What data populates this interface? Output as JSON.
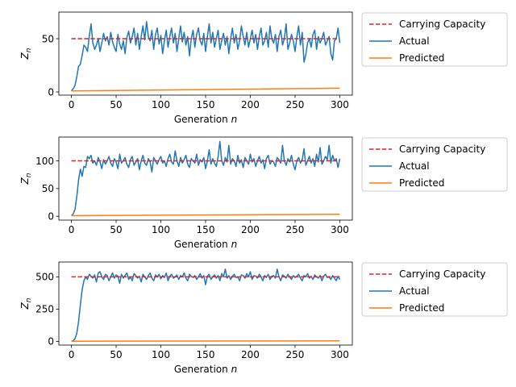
{
  "figure_colors": {
    "capacity": "#d62728",
    "actual": "#1f77b4",
    "predicted": "#ff7f0e"
  },
  "chart_data": [
    {
      "type": "line",
      "xlabel": "Generation n",
      "ylabel": "Z_n",
      "xlim": [
        -14,
        314
      ],
      "ylim": [
        -3,
        75
      ],
      "xticks": [
        0,
        50,
        100,
        150,
        200,
        250,
        300
      ],
      "yticks": [
        0,
        50
      ],
      "legend_position": "outside-right-top",
      "legend": [
        "Carrying Capacity",
        "Actual",
        "Predicted"
      ],
      "series": [
        {
          "name": "Carrying Capacity",
          "style": "dashed",
          "x": [
            0,
            300
          ],
          "values": [
            50,
            50
          ]
        },
        {
          "name": "Actual",
          "x": [
            0,
            2,
            4,
            6,
            8,
            10,
            12,
            14,
            16,
            18,
            20,
            22,
            24,
            26,
            28,
            30,
            32,
            34,
            36,
            38,
            40,
            42,
            44,
            46,
            48,
            50,
            52,
            54,
            56,
            58,
            60,
            62,
            64,
            66,
            68,
            70,
            72,
            74,
            76,
            78,
            80,
            82,
            84,
            86,
            88,
            90,
            92,
            94,
            96,
            98,
            100,
            102,
            104,
            106,
            108,
            110,
            112,
            114,
            116,
            118,
            120,
            122,
            124,
            126,
            128,
            130,
            132,
            134,
            136,
            138,
            140,
            142,
            144,
            146,
            148,
            150,
            152,
            154,
            156,
            158,
            160,
            162,
            164,
            166,
            168,
            170,
            172,
            174,
            176,
            178,
            180,
            182,
            184,
            186,
            188,
            190,
            192,
            194,
            196,
            198,
            200,
            202,
            204,
            206,
            208,
            210,
            212,
            214,
            216,
            218,
            220,
            222,
            224,
            226,
            228,
            230,
            232,
            234,
            236,
            238,
            240,
            242,
            244,
            246,
            248,
            250,
            252,
            254,
            256,
            258,
            260,
            262,
            264,
            266,
            268,
            270,
            272,
            274,
            276,
            278,
            280,
            282,
            284,
            286,
            288,
            290,
            292,
            294,
            296,
            298,
            300
          ],
          "values": [
            1,
            3,
            6,
            14,
            24,
            26,
            34,
            44,
            42,
            38,
            52,
            64,
            46,
            40,
            44,
            50,
            38,
            46,
            55,
            48,
            52,
            44,
            56,
            47,
            42,
            38,
            54,
            45,
            40,
            48,
            36,
            51,
            57,
            46,
            52,
            60,
            44,
            55,
            40,
            52,
            62,
            49,
            66,
            52,
            48,
            58,
            40,
            54,
            60,
            45,
            53,
            36,
            48,
            58,
            42,
            52,
            60,
            46,
            55,
            38,
            50,
            62,
            47,
            56,
            44,
            52,
            34,
            50,
            58,
            42,
            54,
            60,
            48,
            44,
            55,
            38,
            52,
            64,
            46,
            56,
            42,
            50,
            58,
            40,
            48,
            55,
            44,
            52,
            36,
            50,
            60,
            46,
            54,
            40,
            48,
            62,
            52,
            44,
            56,
            42,
            50,
            58,
            46,
            54,
            40,
            52,
            60,
            44,
            48,
            56,
            42,
            62,
            50,
            46,
            54,
            38,
            52,
            58,
            44,
            50,
            64,
            40,
            46,
            54,
            48,
            38,
            52,
            62,
            44,
            56,
            28,
            35,
            46,
            50,
            42,
            54,
            58,
            40,
            52,
            46,
            50,
            56,
            44,
            48,
            52,
            36,
            30,
            48,
            50,
            60,
            46
          ]
        },
        {
          "name": "Predicted",
          "x": [
            0,
            300
          ],
          "values": [
            1,
            3.5
          ]
        }
      ]
    },
    {
      "type": "line",
      "xlabel": "Generation n",
      "ylabel": "Z_n",
      "xlim": [
        -14,
        314
      ],
      "ylim": [
        -7,
        143
      ],
      "xticks": [
        0,
        50,
        100,
        150,
        200,
        250,
        300
      ],
      "yticks": [
        0,
        50,
        100
      ],
      "legend_position": "outside-right-top",
      "legend": [
        "Carrying Capacity",
        "Actual",
        "Predicted"
      ],
      "series": [
        {
          "name": "Carrying Capacity",
          "style": "dashed",
          "x": [
            0,
            300
          ],
          "values": [
            100,
            100
          ]
        },
        {
          "name": "Actual",
          "x": [
            0,
            2,
            4,
            6,
            8,
            10,
            12,
            14,
            16,
            18,
            20,
            22,
            24,
            26,
            28,
            30,
            32,
            34,
            36,
            38,
            40,
            42,
            44,
            46,
            48,
            50,
            52,
            54,
            56,
            58,
            60,
            62,
            64,
            66,
            68,
            70,
            72,
            74,
            76,
            78,
            80,
            82,
            84,
            86,
            88,
            90,
            92,
            94,
            96,
            98,
            100,
            102,
            104,
            106,
            108,
            110,
            112,
            114,
            116,
            118,
            120,
            122,
            124,
            126,
            128,
            130,
            132,
            134,
            136,
            138,
            140,
            142,
            144,
            146,
            148,
            150,
            152,
            154,
            156,
            158,
            160,
            162,
            164,
            166,
            168,
            170,
            172,
            174,
            176,
            178,
            180,
            182,
            184,
            186,
            188,
            190,
            192,
            194,
            196,
            198,
            200,
            202,
            204,
            206,
            208,
            210,
            212,
            214,
            216,
            218,
            220,
            222,
            224,
            226,
            228,
            230,
            232,
            234,
            236,
            238,
            240,
            242,
            244,
            246,
            248,
            250,
            252,
            254,
            256,
            258,
            260,
            262,
            264,
            266,
            268,
            270,
            272,
            274,
            276,
            278,
            280,
            282,
            284,
            286,
            288,
            290,
            292,
            294,
            296,
            298,
            300
          ],
          "values": [
            1,
            4,
            12,
            35,
            65,
            85,
            72,
            90,
            88,
            108,
            104,
            110,
            96,
            100,
            92,
            106,
            98,
            86,
            102,
            94,
            100,
            108,
            96,
            90,
            104,
            98,
            86,
            112,
            96,
            100,
            106,
            94,
            88,
            102,
            108,
            92,
            98,
            104,
            84,
            100,
            110,
            96,
            92,
            104,
            98,
            80,
            106,
            100,
            94,
            102,
            108,
            96,
            100,
            90,
            104,
            112,
            98,
            94,
            118,
            100,
            90,
            106,
            96,
            102,
            110,
            94,
            88,
            104,
            100,
            96,
            112,
            92,
            102,
            98,
            106,
            86,
            100,
            120,
            94,
            104,
            96,
            90,
            108,
            135,
            100,
            92,
            106,
            98,
            128,
            94,
            104,
            100,
            90,
            110,
            96,
            102,
            88,
            106,
            100,
            94,
            112,
            98,
            104,
            90,
            100,
            108,
            96,
            102,
            86,
            104,
            110,
            94,
            100,
            98,
            90,
            106,
            102,
            96,
            128,
            100,
            92,
            104,
            98,
            110,
            94,
            84,
            100,
            106,
            96,
            102,
            122,
            92,
            100,
            108,
            96,
            104,
            90,
            112,
            98,
            124,
            94,
            100,
            108,
            102,
            128,
            96,
            110,
            100,
            104,
            88,
            104
          ]
        },
        {
          "name": "Predicted",
          "x": [
            0,
            300
          ],
          "values": [
            1,
            3.5
          ]
        }
      ]
    },
    {
      "type": "line",
      "xlabel": "Generation n",
      "ylabel": "Z_n",
      "xlim": [
        -14,
        314
      ],
      "ylim": [
        -29,
        615
      ],
      "xticks": [
        0,
        50,
        100,
        150,
        200,
        250,
        300
      ],
      "yticks": [
        0,
        250,
        500
      ],
      "legend_position": "outside-right-top",
      "legend": [
        "Carrying Capacity",
        "Actual",
        "Predicted"
      ],
      "series": [
        {
          "name": "Carrying Capacity",
          "style": "dashed",
          "x": [
            0,
            300
          ],
          "values": [
            500,
            500
          ]
        },
        {
          "name": "Actual",
          "x": [
            0,
            2,
            4,
            6,
            8,
            10,
            12,
            14,
            16,
            18,
            20,
            22,
            24,
            26,
            28,
            30,
            32,
            34,
            36,
            38,
            40,
            42,
            44,
            46,
            48,
            50,
            52,
            54,
            56,
            58,
            60,
            62,
            64,
            66,
            68,
            70,
            72,
            74,
            76,
            78,
            80,
            82,
            84,
            86,
            88,
            90,
            92,
            94,
            96,
            98,
            100,
            102,
            104,
            106,
            108,
            110,
            112,
            114,
            116,
            118,
            120,
            122,
            124,
            126,
            128,
            130,
            132,
            134,
            136,
            138,
            140,
            142,
            144,
            146,
            148,
            150,
            152,
            154,
            156,
            158,
            160,
            162,
            164,
            166,
            168,
            170,
            172,
            174,
            176,
            178,
            180,
            182,
            184,
            186,
            188,
            190,
            192,
            194,
            196,
            198,
            200,
            202,
            204,
            206,
            208,
            210,
            212,
            214,
            216,
            218,
            220,
            222,
            224,
            226,
            228,
            230,
            232,
            234,
            236,
            238,
            240,
            242,
            244,
            246,
            248,
            250,
            252,
            254,
            256,
            258,
            260,
            262,
            264,
            266,
            268,
            270,
            272,
            274,
            276,
            278,
            280,
            282,
            284,
            286,
            288,
            290,
            292,
            294,
            296,
            298,
            300
          ],
          "values": [
            1,
            5,
            20,
            60,
            150,
            280,
            400,
            470,
            500,
            480,
            520,
            505,
            490,
            515,
            460,
            530,
            540,
            500,
            480,
            520,
            510,
            470,
            500,
            530,
            490,
            515,
            505,
            450,
            520,
            490,
            510,
            530,
            480,
            500,
            470,
            525,
            510,
            490,
            505,
            460,
            520,
            500,
            480,
            510,
            530,
            490,
            470,
            515,
            500,
            520,
            485,
            510,
            495,
            530,
            470,
            505,
            520,
            490,
            500,
            515,
            480,
            510,
            500,
            530,
            490,
            470,
            520,
            505,
            495,
            510,
            480,
            500,
            525,
            490,
            510,
            440,
            505,
            520,
            480,
            500,
            515,
            490,
            510,
            470,
            525,
            500,
            560,
            490,
            510,
            480,
            505,
            520,
            495,
            500,
            470,
            515,
            510,
            490,
            525,
            500,
            540,
            480,
            510,
            505,
            490,
            520,
            500,
            470,
            510,
            495,
            520,
            480,
            505,
            510,
            490,
            560,
            500,
            470,
            515,
            505,
            490,
            520,
            500,
            480,
            510,
            495,
            505,
            520,
            490,
            470,
            510,
            500,
            525,
            490,
            505,
            480,
            515,
            500,
            490,
            510,
            470,
            505,
            520,
            495,
            500,
            480,
            510,
            490,
            470,
            505,
            480
          ]
        },
        {
          "name": "Predicted",
          "x": [
            0,
            300
          ],
          "values": [
            1,
            3.5
          ]
        }
      ]
    }
  ]
}
